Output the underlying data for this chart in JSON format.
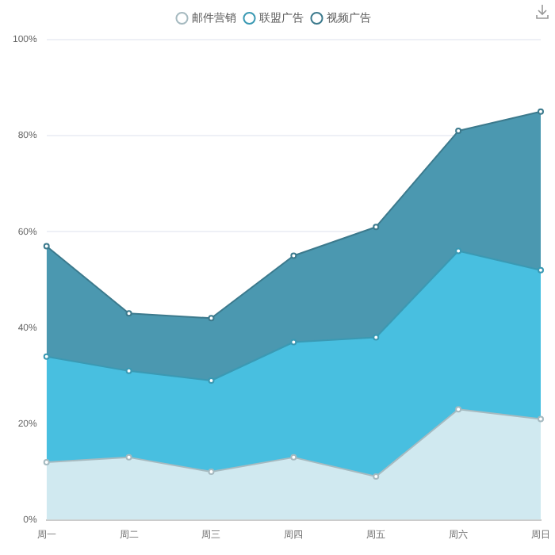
{
  "chart_data": {
    "type": "area",
    "stacked": true,
    "categories": [
      "周一",
      "周二",
      "周三",
      "周四",
      "周五",
      "周六",
      "周日"
    ],
    "series": [
      {
        "name": "邮件营销",
        "color": "#d0e9f0",
        "values": [
          12,
          13,
          10,
          13,
          9,
          23,
          21
        ]
      },
      {
        "name": "联盟广告",
        "color": "#48bfe0",
        "values": [
          22,
          18,
          19,
          24,
          29,
          33,
          31
        ]
      },
      {
        "name": "视频广告",
        "color": "#4b98b0",
        "values": [
          23,
          12,
          13,
          18,
          23,
          25,
          33
        ]
      }
    ],
    "ylim": [
      0,
      100
    ],
    "yticks": [
      {
        "value": 0,
        "label": "0%"
      },
      {
        "value": 20,
        "label": "20%"
      },
      {
        "value": 40,
        "label": "40%"
      },
      {
        "value": 60,
        "label": "60%"
      },
      {
        "value": 80,
        "label": "80%"
      },
      {
        "value": 100,
        "label": "100%"
      }
    ],
    "grid": "y",
    "legend": "top",
    "marker": "circle"
  }
}
